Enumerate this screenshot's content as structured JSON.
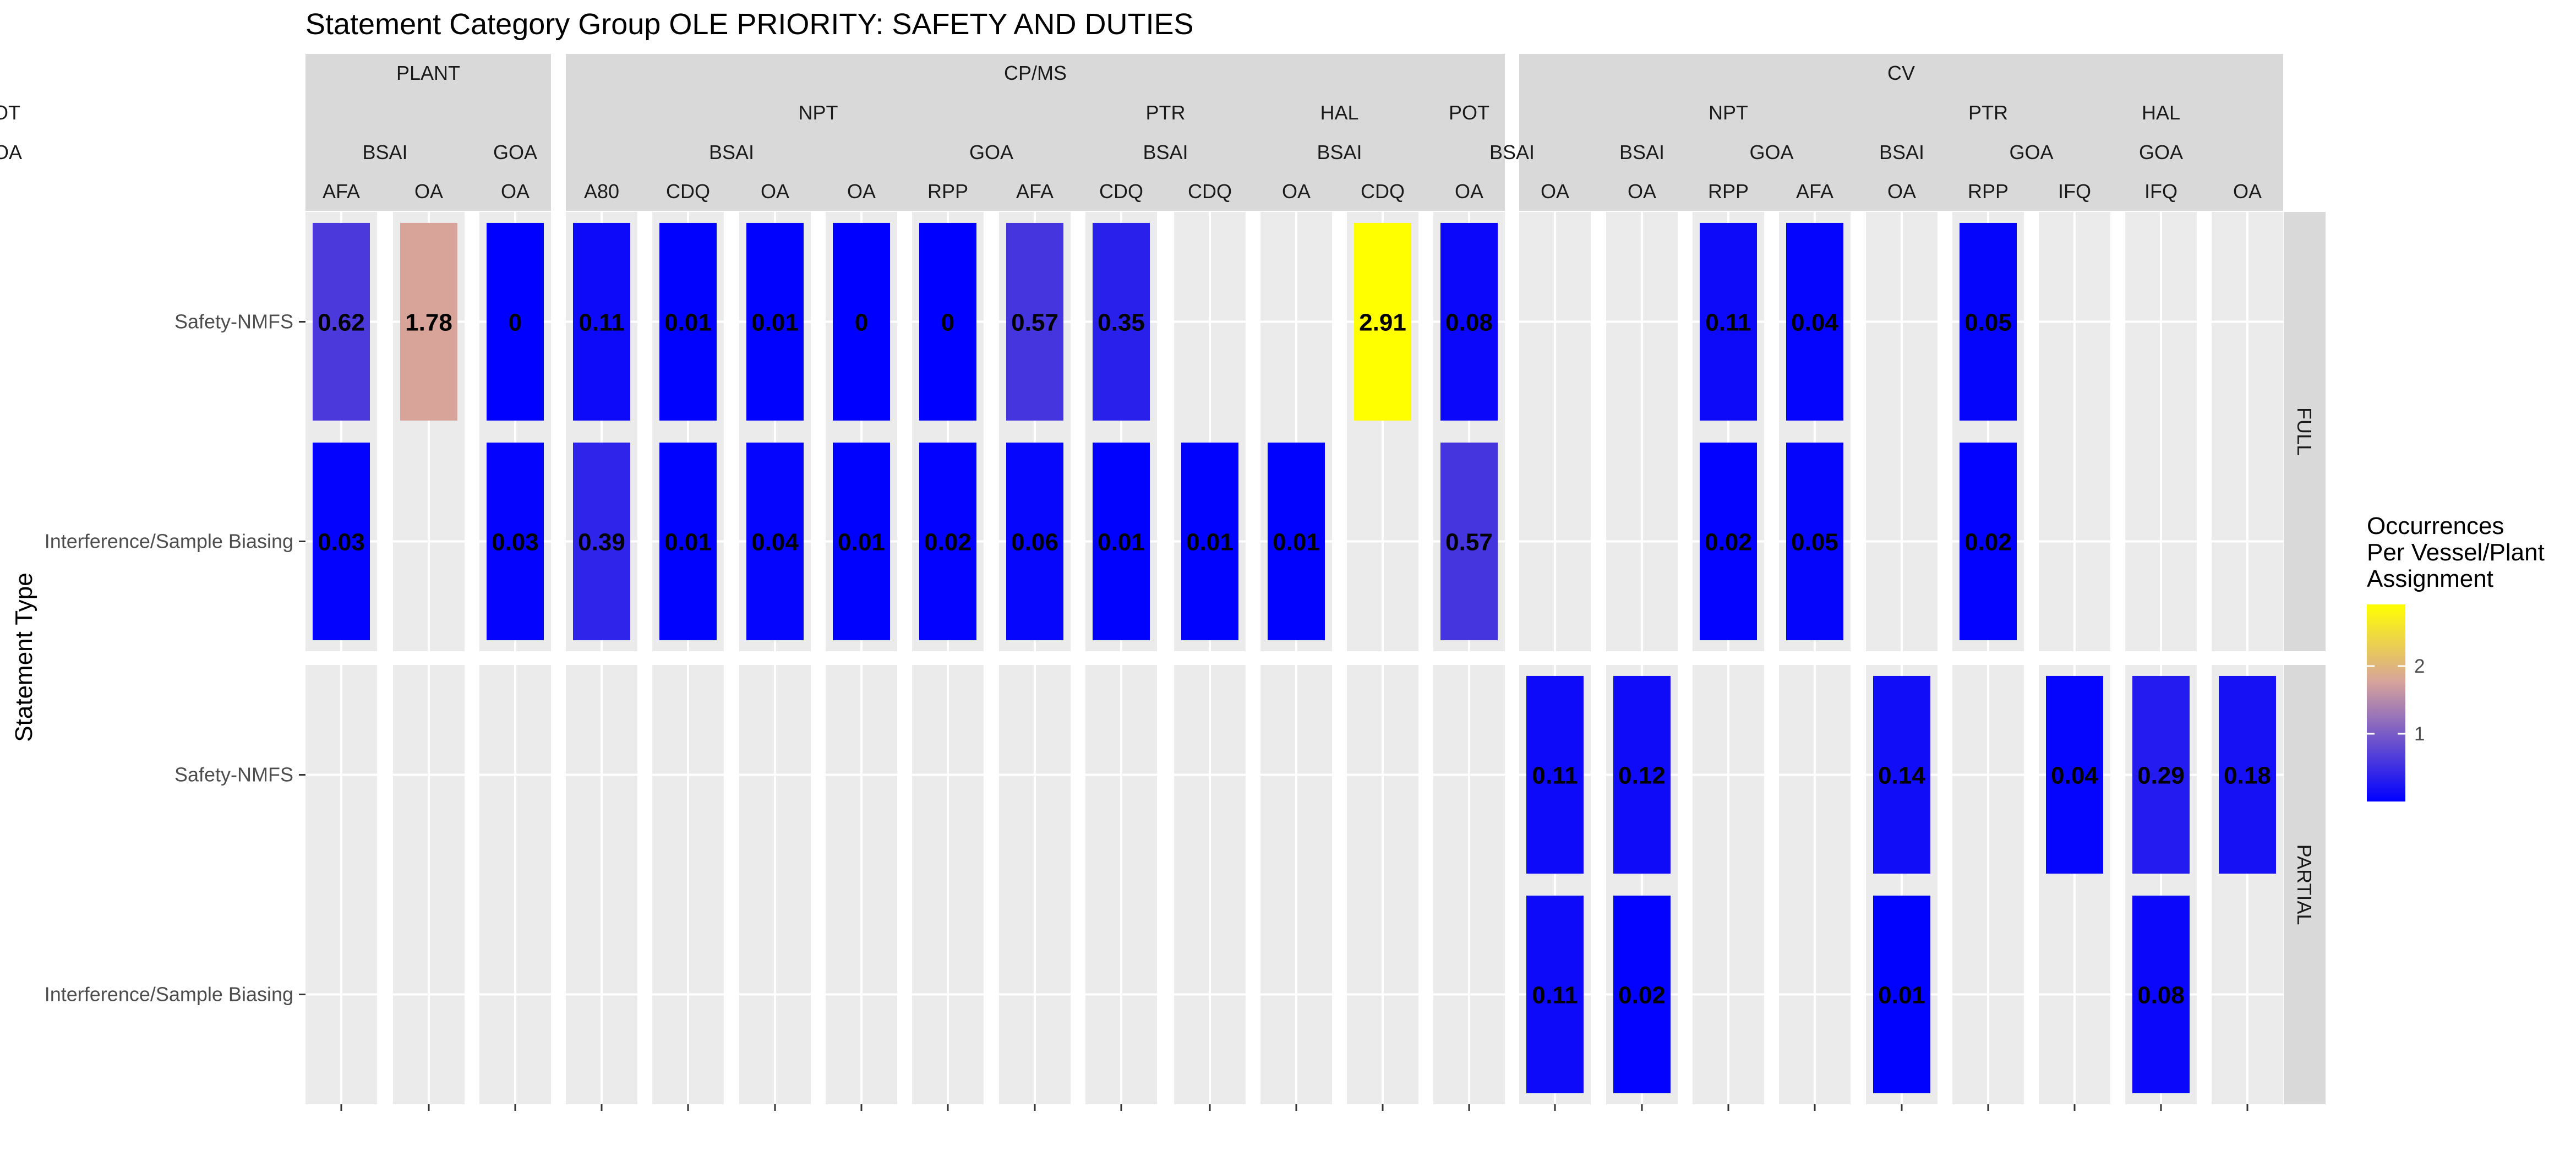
{
  "chart_data": {
    "type": "heatmap",
    "title": "Statement Category Group OLE PRIORITY: SAFETY AND DUTIES",
    "ylabel": "Statement Type",
    "y_categories": [
      "Safety-NMFS",
      "Interference/Sample Biasing"
    ],
    "rows": [
      "FULL",
      "PARTIAL"
    ],
    "level1": [
      {
        "label": "PLANT",
        "cols": 3
      },
      {
        "label": "CP/MS",
        "cols": 11
      },
      {
        "label": "CV",
        "cols": 9
      }
    ],
    "level2": [
      {
        "label": "",
        "cols": 3
      },
      {
        "label": "NPT",
        "cols": 6
      },
      {
        "label": "PTR",
        "cols": 2
      },
      {
        "label": "HAL",
        "cols": 2
      },
      {
        "label": "POT",
        "cols": 1
      },
      {
        "label": "",
        "cols": 1
      },
      {
        "label": "NPT",
        "cols": 3
      },
      {
        "label": "PTR",
        "cols": 3
      },
      {
        "label": "HAL",
        "cols": 1
      },
      {
        "label": "POT",
        "cols": 2
      }
    ],
    "level3": [
      {
        "label": "BSAI",
        "cols": 2
      },
      {
        "label": "GOA",
        "cols": 1
      },
      {
        "label": "BSAI",
        "cols": 4
      },
      {
        "label": "GOA",
        "cols": 2
      },
      {
        "label": "BSAI",
        "cols": 2
      },
      {
        "label": "BSAI",
        "cols": 2
      },
      {
        "label": "BSAI",
        "cols": 2
      },
      {
        "label": "BSAI",
        "cols": 1
      },
      {
        "label": "GOA",
        "cols": 2
      },
      {
        "label": "BSAI",
        "cols": 1
      },
      {
        "label": "GOA",
        "cols": 2
      },
      {
        "label": "GOA",
        "cols": 1
      },
      {
        "label": "GOA",
        "cols": 2
      }
    ],
    "columns": [
      "AFA",
      "OA",
      "OA",
      "A80",
      "CDQ",
      "OA",
      "OA",
      "RPP",
      "AFA",
      "CDQ",
      "CDQ",
      "OA",
      "CDQ",
      "OA",
      "OA",
      "OA",
      "RPP",
      "AFA",
      "OA",
      "RPP",
      "IFQ",
      "IFQ",
      "OA"
    ],
    "cells": [
      {
        "row": 0,
        "col": 0,
        "y": 0,
        "value": 0.62
      },
      {
        "row": 0,
        "col": 0,
        "y": 1,
        "value": 0.03
      },
      {
        "row": 0,
        "col": 1,
        "y": 0,
        "value": 1.78
      },
      {
        "row": 0,
        "col": 2,
        "y": 0,
        "value": 0
      },
      {
        "row": 0,
        "col": 2,
        "y": 1,
        "value": 0.03
      },
      {
        "row": 0,
        "col": 3,
        "y": 0,
        "value": 0.11
      },
      {
        "row": 0,
        "col": 3,
        "y": 1,
        "value": 0.39
      },
      {
        "row": 0,
        "col": 4,
        "y": 0,
        "value": 0.01
      },
      {
        "row": 0,
        "col": 4,
        "y": 1,
        "value": 0.01
      },
      {
        "row": 0,
        "col": 5,
        "y": 0,
        "value": 0.01
      },
      {
        "row": 0,
        "col": 5,
        "y": 1,
        "value": 0.04
      },
      {
        "row": 0,
        "col": 6,
        "y": 0,
        "value": 0
      },
      {
        "row": 0,
        "col": 6,
        "y": 1,
        "value": 0.01
      },
      {
        "row": 0,
        "col": 7,
        "y": 0,
        "value": 0
      },
      {
        "row": 0,
        "col": 7,
        "y": 1,
        "value": 0.02
      },
      {
        "row": 0,
        "col": 8,
        "y": 0,
        "value": 0.57
      },
      {
        "row": 0,
        "col": 8,
        "y": 1,
        "value": 0.06
      },
      {
        "row": 0,
        "col": 9,
        "y": 0,
        "value": 0.35
      },
      {
        "row": 0,
        "col": 9,
        "y": 1,
        "value": 0.01
      },
      {
        "row": 0,
        "col": 10,
        "y": 1,
        "value": 0.01
      },
      {
        "row": 0,
        "col": 11,
        "y": 1,
        "value": 0.01
      },
      {
        "row": 0,
        "col": 12,
        "y": 0,
        "value": 2.91
      },
      {
        "row": 0,
        "col": 13,
        "y": 0,
        "value": 0.08
      },
      {
        "row": 0,
        "col": 13,
        "y": 1,
        "value": 0.57
      },
      {
        "row": 0,
        "col": 16,
        "y": 0,
        "value": 0.11
      },
      {
        "row": 0,
        "col": 16,
        "y": 1,
        "value": 0.02
      },
      {
        "row": 0,
        "col": 17,
        "y": 0,
        "value": 0.04
      },
      {
        "row": 0,
        "col": 17,
        "y": 1,
        "value": 0.05
      },
      {
        "row": 0,
        "col": 19,
        "y": 0,
        "value": 0.05
      },
      {
        "row": 0,
        "col": 19,
        "y": 1,
        "value": 0.02
      },
      {
        "row": 1,
        "col": 14,
        "y": 0,
        "value": 0.11
      },
      {
        "row": 1,
        "col": 14,
        "y": 1,
        "value": 0.11
      },
      {
        "row": 1,
        "col": 15,
        "y": 0,
        "value": 0.12
      },
      {
        "row": 1,
        "col": 15,
        "y": 1,
        "value": 0.02
      },
      {
        "row": 1,
        "col": 18,
        "y": 0,
        "value": 0.14
      },
      {
        "row": 1,
        "col": 18,
        "y": 1,
        "value": 0.01
      },
      {
        "row": 1,
        "col": 20,
        "y": 0,
        "value": 0.04
      },
      {
        "row": 1,
        "col": 21,
        "y": 0,
        "value": 0.29
      },
      {
        "row": 1,
        "col": 21,
        "y": 1,
        "value": 0.08
      },
      {
        "row": 1,
        "col": 22,
        "y": 0,
        "value": 0.18
      }
    ],
    "legend": {
      "title": [
        "Occurrences",
        "Per Vessel/Plant",
        "Assignment"
      ],
      "breaks": [
        1,
        2
      ],
      "range": [
        0,
        2.91
      ],
      "colors": [
        "#0000FF",
        "#D8A49A",
        "#FFFF00"
      ]
    },
    "grid": true,
    "legend_position": "right"
  }
}
